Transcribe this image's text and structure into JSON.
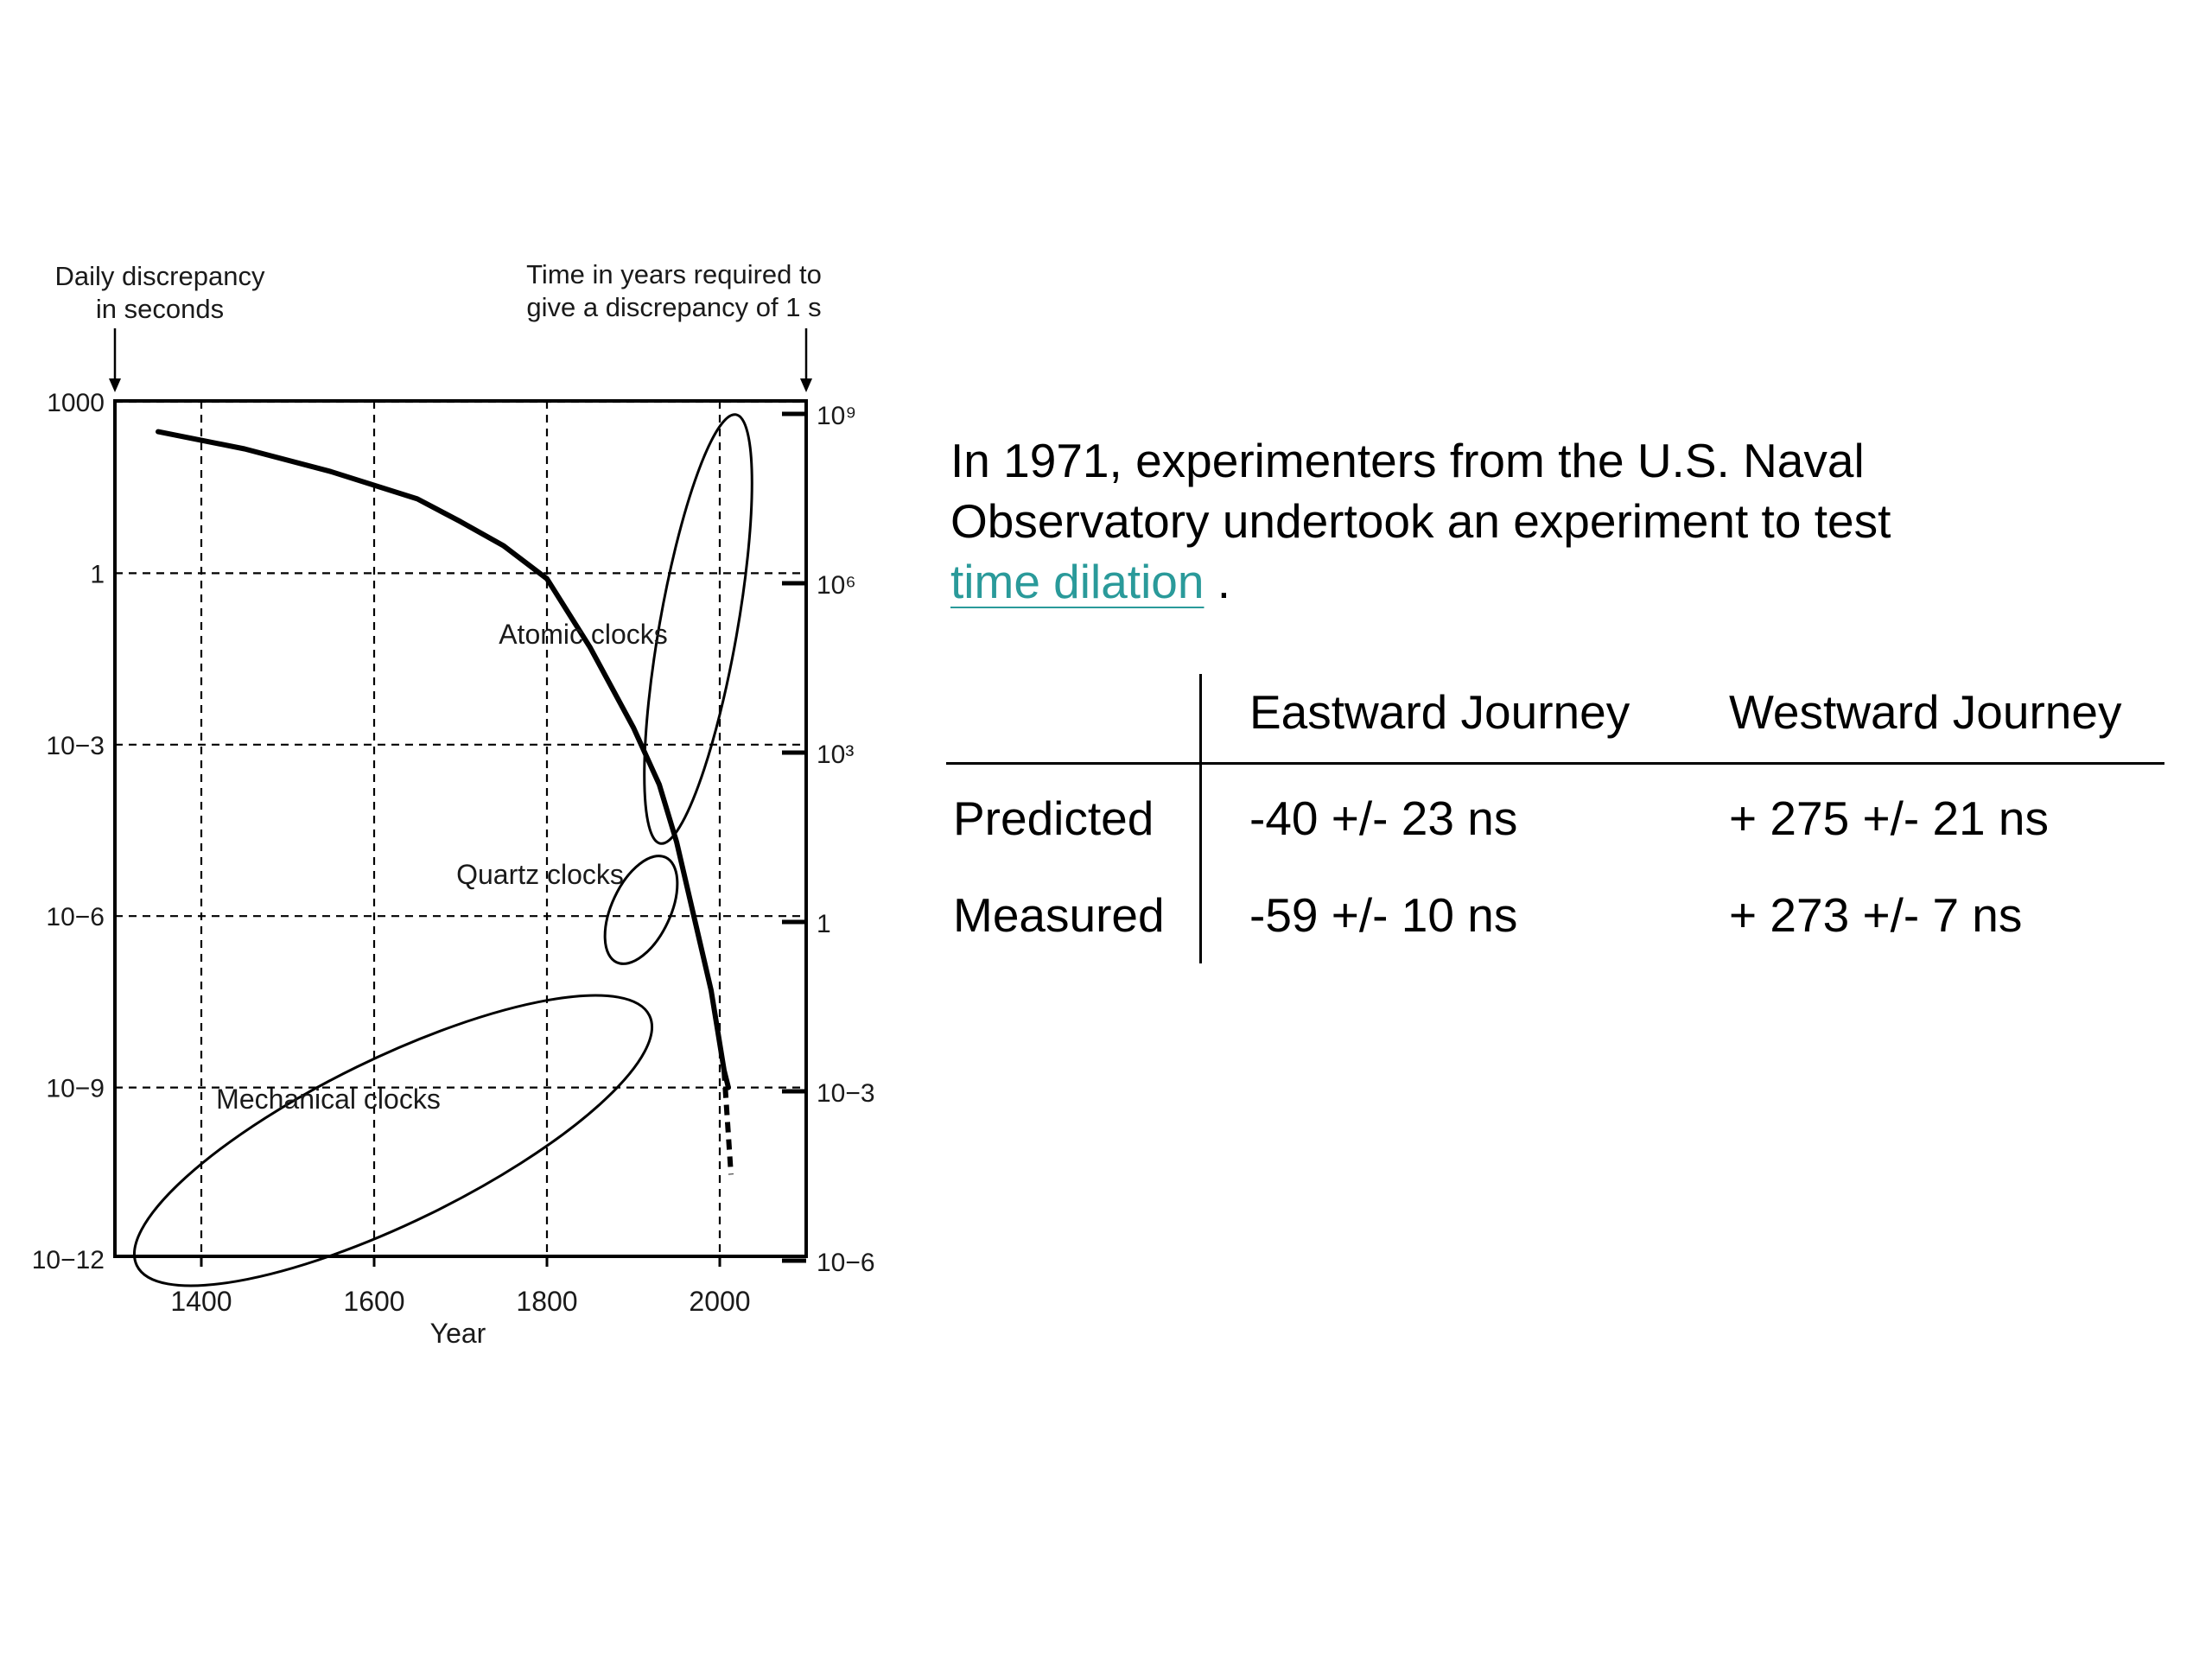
{
  "chart_data": {
    "type": "line",
    "left_axis_title": [
      "Daily discrepancy",
      "in seconds"
    ],
    "right_axis_title": [
      "Time in years required to",
      "give a discrepancy of 1 s"
    ],
    "xlabel": "Year",
    "xlim": [
      1300,
      2100
    ],
    "x_ticks": [
      "1400",
      "1600",
      "1800",
      "2000"
    ],
    "y_scale": "log",
    "left_ticks": [
      "10−12",
      "10−9",
      "10−6",
      "10−3",
      "1",
      "1000"
    ],
    "right_ticks": [
      "10⁹",
      "10⁶",
      "10³",
      "1",
      "10−3",
      "10−6"
    ],
    "series": [
      {
        "x": [
          1350,
          1450,
          1550,
          1650,
          1700,
          1750,
          1800,
          1850,
          1900,
          1930,
          1950,
          1970,
          1990,
          2005,
          2010
        ],
        "y_daily_seconds": [
          300,
          150,
          60,
          20,
          8,
          3,
          0.8,
          0.05,
          0.002,
          0.0002,
          2e-05,
          1e-06,
          5e-08,
          2e-09,
          1e-09
        ]
      }
    ],
    "annotations": [
      {
        "label": "Mechanical clocks"
      },
      {
        "label": "Quartz clocks"
      },
      {
        "label": "Atomic clocks"
      }
    ],
    "grid": true
  },
  "text": {
    "intro_line1": "In 1971, experimenters from the U.S. Naval",
    "intro_line2": "Observatory undertook an experiment to test",
    "link": "time dilation",
    "period": " ."
  },
  "table": {
    "headers": [
      "",
      "Eastward Journey",
      "Westward Journey"
    ],
    "rows": [
      {
        "label": "Predicted",
        "east": "-40 +/- 23 ns",
        "west": "+ 275 +/- 21 ns"
      },
      {
        "label": "Measured",
        "east": "-59 +/- 10 ns",
        "west": "+ 273 +/- 7 ns"
      }
    ]
  }
}
